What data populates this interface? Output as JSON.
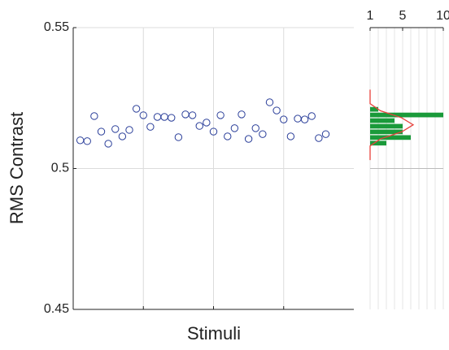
{
  "chart_data": [
    {
      "type": "scatter",
      "xlabel": "Stimuli",
      "ylabel": "RMS Contrast",
      "x": [
        1,
        2,
        3,
        4,
        5,
        6,
        7,
        8,
        9,
        10,
        11,
        12,
        13,
        14,
        15,
        16,
        17,
        18,
        19,
        20,
        21,
        22,
        23,
        24,
        25,
        26,
        27,
        28,
        29,
        30,
        31,
        32,
        33,
        34,
        35,
        36
      ],
      "values": [
        0.51,
        0.5097,
        0.5186,
        0.5131,
        0.5088,
        0.514,
        0.5114,
        0.5137,
        0.5212,
        0.5189,
        0.5148,
        0.5183,
        0.5183,
        0.518,
        0.5111,
        0.5192,
        0.5189,
        0.5151,
        0.5163,
        0.5131,
        0.5189,
        0.5114,
        0.5143,
        0.5192,
        0.5105,
        0.5143,
        0.5122,
        0.5235,
        0.5206,
        0.5174,
        0.5114,
        0.5177,
        0.5174,
        0.5186,
        0.5108,
        0.5122
      ],
      "color": "#2b3f9a",
      "xlim": [
        0,
        40
      ],
      "xticks": [
        10,
        20,
        30
      ],
      "ylim": [
        0.45,
        0.55
      ],
      "yticks": [
        0.45,
        0.5,
        0.55
      ],
      "grid": true
    },
    {
      "type": "histogram",
      "orientation": "horizontal",
      "bins": [
        0.508,
        0.51,
        0.512,
        0.514,
        0.516,
        0.518,
        0.52,
        0.522,
        0.524
      ],
      "values": [
        3,
        6,
        5,
        5,
        4,
        10,
        2,
        1
      ],
      "color": "#1a9a3a",
      "xlim": [
        0,
        10
      ],
      "xticks": [
        1,
        5,
        10
      ],
      "ylim": [
        0.45,
        0.55
      ],
      "yticks": [
        0.5
      ],
      "curve": {
        "color": "#e8413c",
        "y": [
          0.503,
          0.5055,
          0.508,
          0.5105,
          0.513,
          0.5155,
          0.518,
          0.5205,
          0.523,
          0.5255,
          0.528
        ],
        "x": [
          0.01,
          0.11,
          0.63,
          2.27,
          4.88,
          6.3,
          4.88,
          2.27,
          0.63,
          0.11,
          0.01
        ]
      }
    }
  ]
}
